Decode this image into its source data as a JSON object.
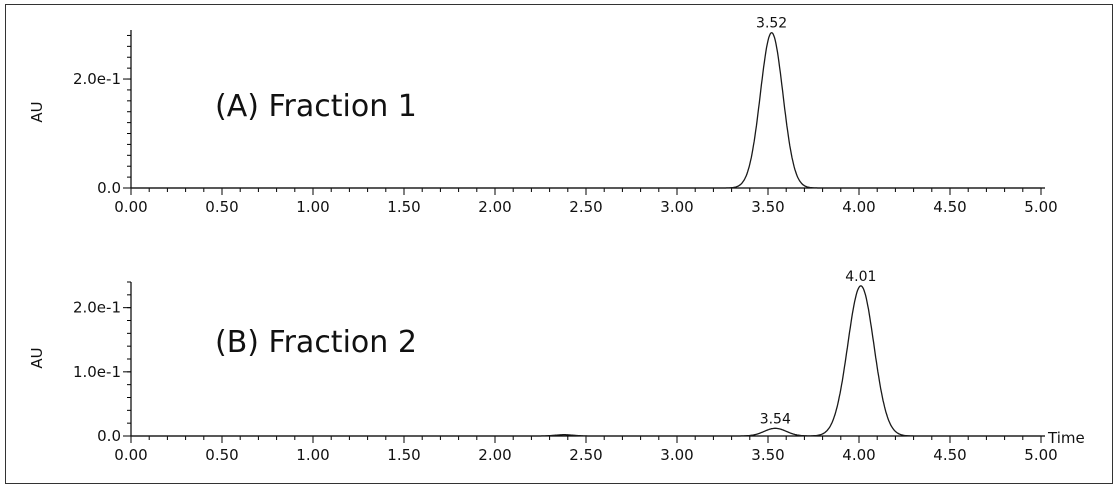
{
  "chart_data": [
    {
      "type": "line",
      "title": "(A) Fraction 1",
      "xlabel": "",
      "ylabel": "AU",
      "xlim": [
        0,
        5
      ],
      "ylim": [
        0,
        0.29
      ],
      "x_ticks": [
        "0.00",
        "0.50",
        "1.00",
        "1.50",
        "2.00",
        "2.50",
        "3.00",
        "3.50",
        "4.00",
        "4.50",
        "5.00"
      ],
      "y_ticks": [
        {
          "value": 0,
          "label": "0.0"
        },
        {
          "value": 0.2,
          "label": "2.0e-1"
        }
      ],
      "grid": false,
      "peaks": [
        {
          "rt": 3.52,
          "label": "3.52",
          "height": 0.285,
          "sigma": 0.062
        }
      ]
    },
    {
      "type": "line",
      "title": "(B) Fraction 2",
      "xlabel": "Time",
      "ylabel": "AU",
      "xlim": [
        0,
        5
      ],
      "ylim": [
        0,
        0.24
      ],
      "x_ticks": [
        "0.00",
        "0.50",
        "1.00",
        "1.50",
        "2.00",
        "2.50",
        "3.00",
        "3.50",
        "4.00",
        "4.50",
        "5.00"
      ],
      "y_ticks": [
        {
          "value": 0,
          "label": "0.0"
        },
        {
          "value": 0.1,
          "label": "1.0e-1"
        },
        {
          "value": 0.2,
          "label": "2.0e-1"
        }
      ],
      "grid": false,
      "peaks": [
        {
          "rt": 3.54,
          "label": "3.54",
          "height": 0.012,
          "sigma": 0.06
        },
        {
          "rt": 4.01,
          "label": "4.01",
          "height": 0.234,
          "sigma": 0.072
        },
        {
          "rt": 2.38,
          "label": "",
          "height": 0.002,
          "sigma": 0.05
        }
      ]
    }
  ]
}
